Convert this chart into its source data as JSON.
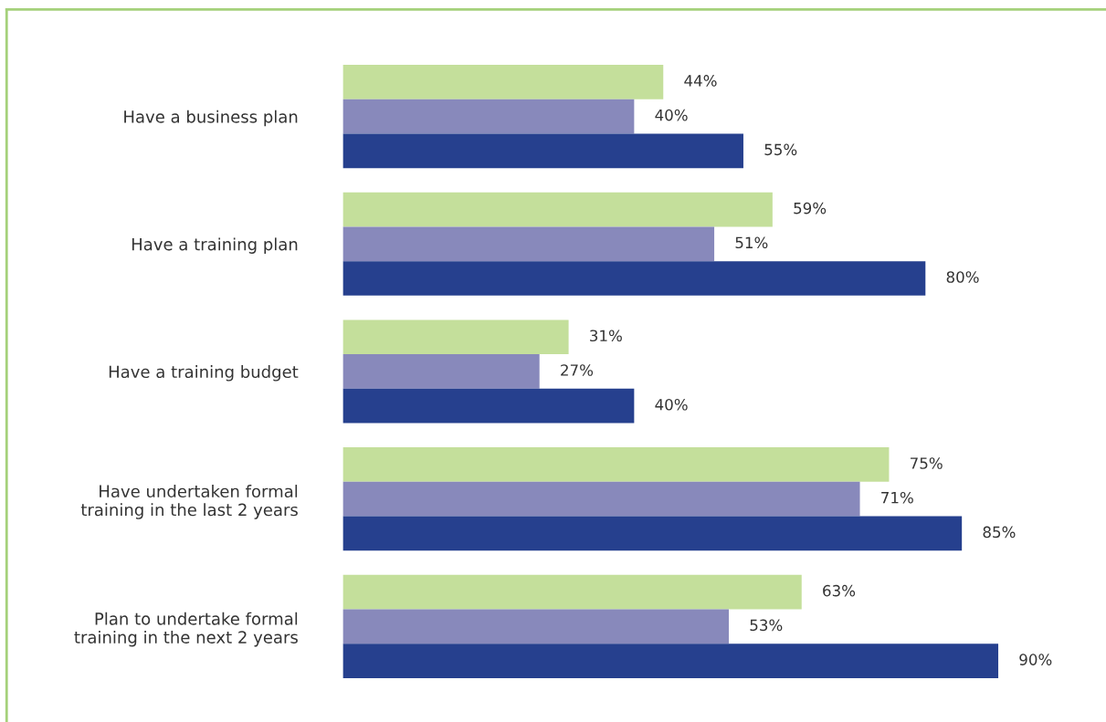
{
  "chart_data": {
    "type": "bar",
    "orientation": "horizontal",
    "categories": [
      "Have a business plan",
      "Have a training plan",
      "Have a training budget",
      "Have undertaken formal\ntraining in the last 2 years",
      "Plan to undertake formal\ntraining in the next 2 years"
    ],
    "series": [
      {
        "color": "#c4df9b",
        "values": [
          44,
          59,
          31,
          75,
          63
        ],
        "value_labels": [
          "44%",
          "59%",
          "31%",
          "75%",
          "63%"
        ]
      },
      {
        "color": "#8889bb",
        "values": [
          40,
          51,
          27,
          71,
          53
        ],
        "value_labels": [
          "40%",
          "51%",
          "27%",
          "71%",
          "53%"
        ]
      },
      {
        "color": "#26408e",
        "values": [
          55,
          80,
          40,
          85,
          90
        ],
        "value_labels": [
          "55%",
          "80%",
          "40%",
          "85%",
          "90%"
        ]
      }
    ],
    "grid": false
  }
}
